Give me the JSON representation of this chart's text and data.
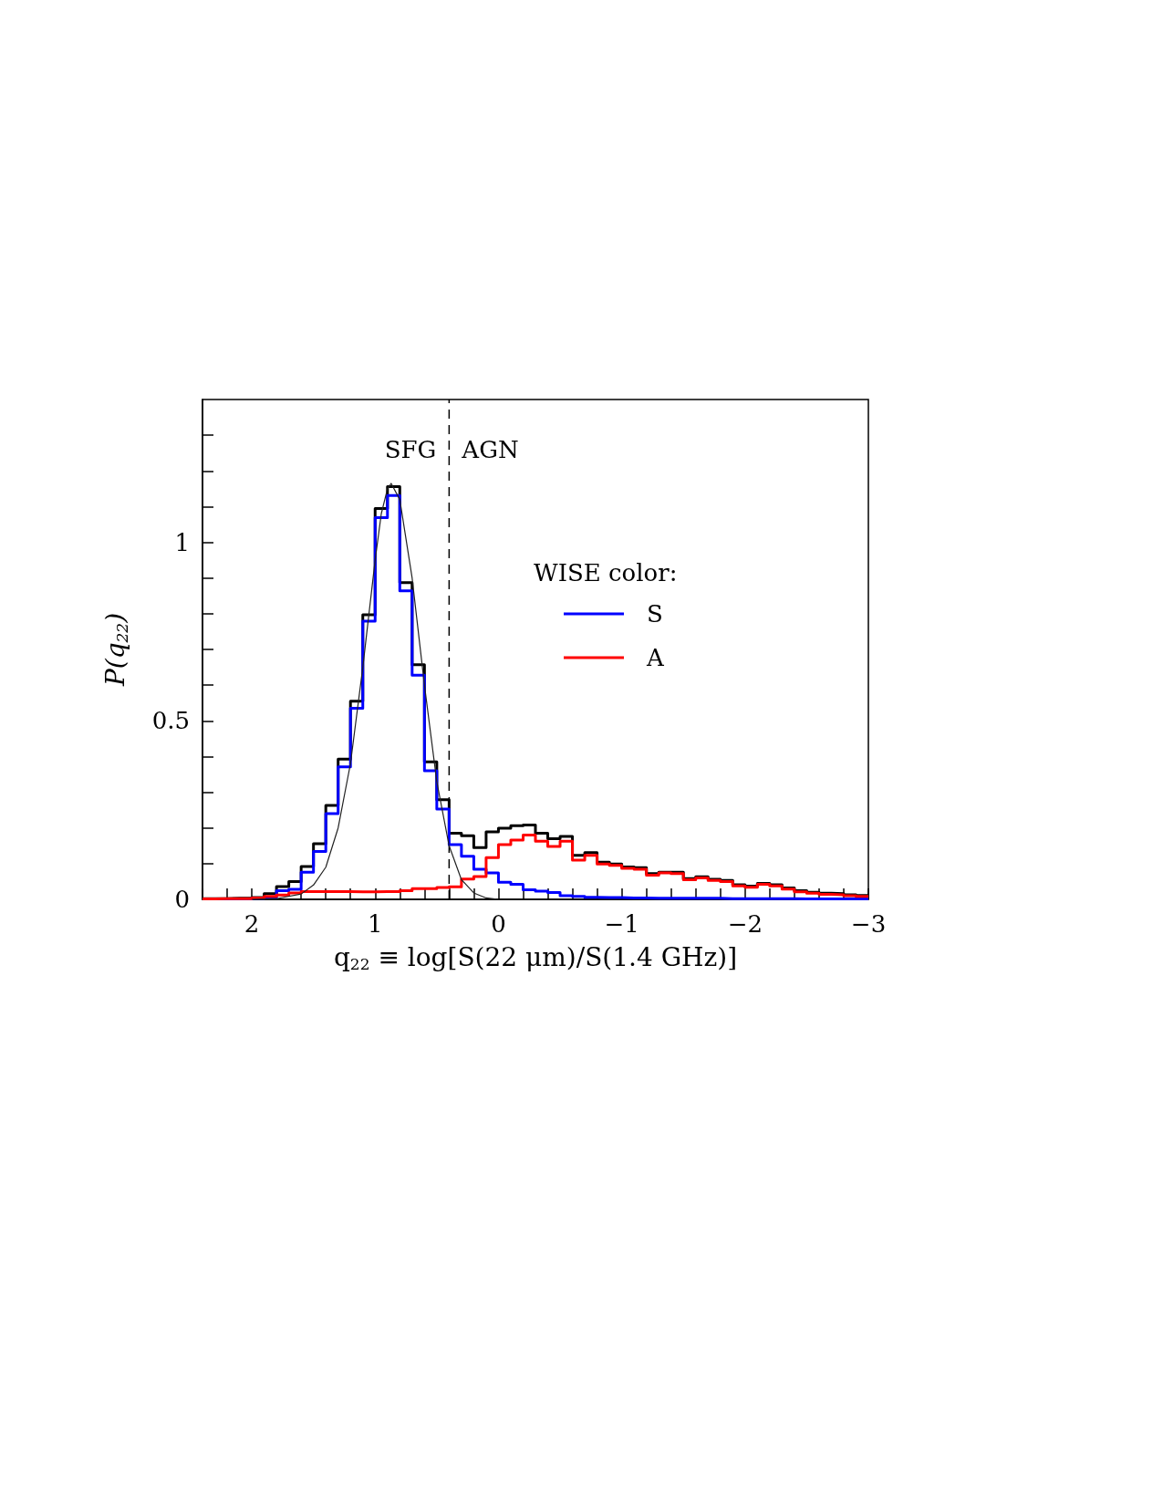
{
  "chart_data": {
    "type": "histogram",
    "xlabel": "q$_{22}$ ≡ log[S(22 μm)/S(1.4 GHz)]",
    "ylabel": "P(q$_{22}$)",
    "legend_title": "WISE color:",
    "bins": [
      2.4,
      2.3,
      2.2,
      2.1,
      2.0,
      1.9,
      1.8,
      1.7,
      1.6,
      1.5,
      1.4,
      1.3,
      1.2,
      1.1,
      1.0,
      0.9,
      0.8,
      0.7,
      0.6,
      0.5,
      0.4,
      0.3,
      0.2,
      0.1,
      0.0,
      -0.1,
      -0.2,
      -0.3,
      -0.4,
      -0.5,
      -0.6,
      -0.7,
      -0.8,
      -0.9,
      -1.0,
      -1.1,
      -1.2,
      -1.3,
      -1.4,
      -1.5,
      -1.6,
      -1.7,
      -1.8,
      -1.9,
      -2.0,
      -2.1,
      -2.2,
      -2.3,
      -2.4,
      -2.5,
      -2.6,
      -2.7,
      -2.8,
      -2.9,
      -3.0
    ],
    "series": [
      {
        "color": "#000000",
        "values": [
          0.002,
          0.002,
          0.003,
          0.003,
          0.005,
          0.016,
          0.036,
          0.05,
          0.092,
          0.156,
          0.263,
          0.393,
          0.555,
          0.797,
          1.095,
          1.156,
          0.887,
          0.657,
          0.385,
          0.279,
          0.185,
          0.178,
          0.145,
          0.189,
          0.199,
          0.206,
          0.208,
          0.185,
          0.17,
          0.176,
          0.123,
          0.131,
          0.104,
          0.099,
          0.091,
          0.089,
          0.072,
          0.076,
          0.076,
          0.058,
          0.063,
          0.056,
          0.053,
          0.041,
          0.037,
          0.045,
          0.041,
          0.032,
          0.024,
          0.02,
          0.017,
          0.016,
          0.013,
          0.011
        ]
      },
      {
        "name": "S",
        "color": "#0000ff",
        "values": [
          0.001,
          0.001,
          0.001,
          0.001,
          0.003,
          0.005,
          0.024,
          0.028,
          0.076,
          0.134,
          0.24,
          0.371,
          0.535,
          0.779,
          1.069,
          1.131,
          0.864,
          0.628,
          0.36,
          0.253,
          0.153,
          0.121,
          0.084,
          0.074,
          0.048,
          0.042,
          0.027,
          0.023,
          0.019,
          0.01,
          0.008,
          0.006,
          0.005,
          0.005,
          0.004,
          0.004,
          0.003,
          0.003,
          0.003,
          0.003,
          0.003,
          0.003,
          0.002,
          0.002,
          0.002,
          0.002,
          0.002,
          0.002,
          0.001,
          0.001,
          0.001,
          0.001,
          0.001,
          0.001
        ]
      },
      {
        "name": "A",
        "color": "#ff0000",
        "values": [
          0.001,
          0.002,
          0.002,
          0.002,
          0.004,
          0.008,
          0.012,
          0.018,
          0.022,
          0.022,
          0.022,
          0.022,
          0.021,
          0.021,
          0.022,
          0.022,
          0.024,
          0.03,
          0.03,
          0.033,
          0.035,
          0.057,
          0.064,
          0.117,
          0.153,
          0.166,
          0.18,
          0.163,
          0.148,
          0.163,
          0.11,
          0.123,
          0.099,
          0.095,
          0.087,
          0.084,
          0.068,
          0.074,
          0.072,
          0.055,
          0.06,
          0.053,
          0.05,
          0.038,
          0.034,
          0.042,
          0.038,
          0.029,
          0.021,
          0.017,
          0.014,
          0.013,
          0.01,
          0.008
        ]
      },
      {
        "type": "line",
        "color": "#222222",
        "x": [
          2.0,
          1.8,
          1.6,
          1.5,
          1.4,
          1.3,
          1.2,
          1.1,
          1.0,
          0.95,
          0.9,
          0.87,
          0.8,
          0.7,
          0.6,
          0.5,
          0.4,
          0.3,
          0.2,
          0.1,
          0.0
        ],
        "values": [
          0.0,
          0.002,
          0.015,
          0.04,
          0.09,
          0.2,
          0.38,
          0.65,
          0.95,
          1.08,
          1.15,
          1.165,
          1.12,
          0.9,
          0.6,
          0.33,
          0.15,
          0.055,
          0.018,
          0.004,
          0.0
        ]
      }
    ],
    "xlim": [
      2.4,
      -3
    ],
    "xticks": [
      {
        "value": 2.4,
        "label": null
      },
      {
        "value": 2.2,
        "label": null
      },
      2,
      {
        "value": 1.8,
        "label": null
      },
      {
        "value": 1.6,
        "label": null
      },
      {
        "value": 1.4,
        "label": null
      },
      {
        "value": 1.2,
        "label": null
      },
      1,
      {
        "value": 0.8,
        "label": null
      },
      {
        "value": 0.6,
        "label": null
      },
      {
        "value": 0.4,
        "label": null
      },
      {
        "value": 0.2,
        "label": null
      },
      0,
      {
        "value": -0.2,
        "label": null
      },
      {
        "value": -0.4,
        "label": null
      },
      {
        "value": -0.6,
        "label": null
      },
      {
        "value": -0.8,
        "label": null
      },
      {
        "value": -1,
        "label": "−1"
      },
      {
        "value": -1.2,
        "label": null
      },
      {
        "value": -1.4,
        "label": null
      },
      {
        "value": -1.6,
        "label": null
      },
      {
        "value": -1.8,
        "label": null
      },
      {
        "value": -2,
        "label": "−2"
      },
      {
        "value": -2.2,
        "label": null
      },
      {
        "value": -2.4,
        "label": null
      },
      {
        "value": -2.6,
        "label": null
      },
      {
        "value": -2.8,
        "label": null
      },
      {
        "value": -3,
        "label": "−3"
      }
    ],
    "ylim": [
      0,
      1.4
    ],
    "yticks": [
      0,
      {
        "value": 0.1,
        "label": null
      },
      {
        "value": 0.2,
        "label": null
      },
      {
        "value": 0.3,
        "label": null
      },
      {
        "value": 0.4,
        "label": null
      },
      0.5,
      {
        "value": 0.6,
        "label": null
      },
      {
        "value": 0.7,
        "label": null
      },
      {
        "value": 0.8,
        "label": null
      },
      {
        "value": 0.9,
        "label": null
      },
      1,
      {
        "value": 1.1,
        "label": null
      },
      {
        "value": 1.2,
        "label": null
      },
      {
        "value": 1.3,
        "label": null
      }
    ],
    "ref_lines": [
      {
        "axis": "x",
        "value": 0.4,
        "line_style": "dashed"
      }
    ],
    "annotations": [
      "SFG",
      "AGN"
    ],
    "legend": "top right",
    "grid": false
  }
}
